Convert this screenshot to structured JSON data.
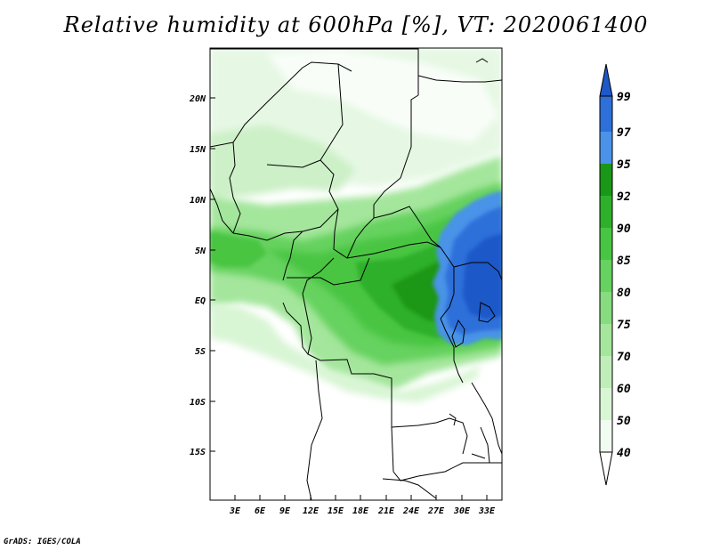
{
  "title": "Relative humidity at 600hPa [%], VT: 2020061400",
  "credit": "GrADS: IGES/COLA",
  "map": {
    "lat_labels": [
      "20N",
      "15N",
      "10N",
      "5N",
      "EQ",
      "5S",
      "10S",
      "15S"
    ],
    "lon_labels": [
      "3E",
      "6E",
      "9E",
      "12E",
      "15E",
      "18E",
      "21E",
      "24E",
      "27E",
      "30E",
      "33E"
    ]
  },
  "colorbar": {
    "levels": [
      "40",
      "50",
      "60",
      "70",
      "75",
      "80",
      "85",
      "90",
      "92",
      "95",
      "97",
      "99"
    ],
    "colors": [
      "#f0fcf0",
      "#d8f5d4",
      "#bfeeb8",
      "#a4e69c",
      "#86dc7e",
      "#66d25f",
      "#48c542",
      "#2fb02b",
      "#1a9718",
      "#4a93e8",
      "#2f6fda",
      "#1f58c8"
    ]
  }
}
